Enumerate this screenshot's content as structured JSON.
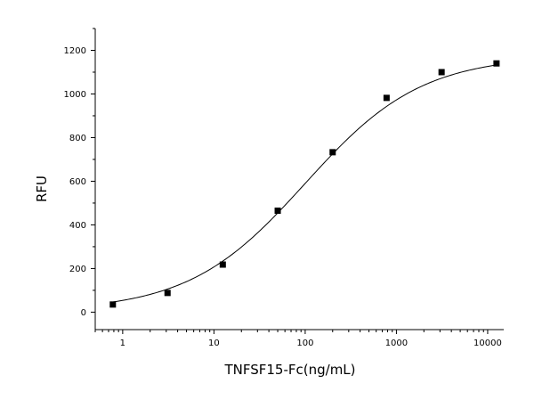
{
  "chart_data": {
    "type": "scatter",
    "title": "",
    "xlabel": "TNFSF15-Fc(ng/mL)",
    "ylabel": "RFU",
    "x_scale": "log",
    "xlim": [
      0.5,
      15000
    ],
    "ylim": [
      -80,
      1300
    ],
    "x_ticks": [
      1,
      10,
      100,
      1000,
      10000
    ],
    "y_ticks": [
      0,
      200,
      400,
      600,
      800,
      1000,
      1200
    ],
    "grid": false,
    "legend": "none",
    "series": [
      {
        "x": [
          0.78,
          3.1,
          12.5,
          50,
          200,
          780,
          3125,
          12500
        ],
        "y": [
          35,
          88,
          218,
          465,
          733,
          982,
          1100,
          1140
        ]
      }
    ],
    "fit_curve": {
      "type": "4-parameter logistic",
      "bottom": 5,
      "top": 1175,
      "ec50": 100,
      "hill": 0.68
    },
    "colors": {
      "marker": "#000000",
      "curve": "#000000",
      "axis": "#000000"
    }
  }
}
